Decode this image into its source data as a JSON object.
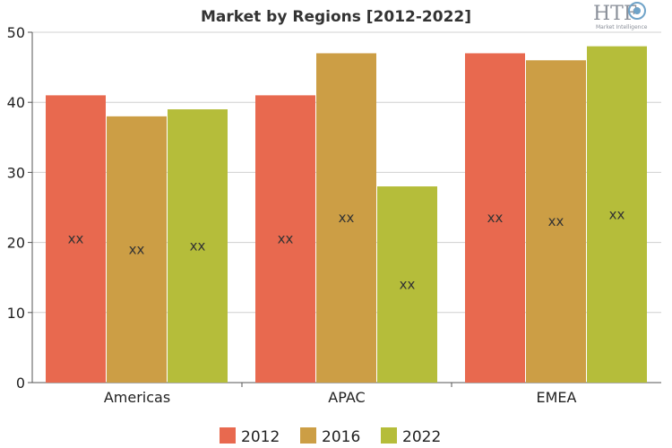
{
  "chart_data": {
    "type": "bar",
    "title": "Market by Regions [2012-2022]",
    "categories": [
      "Americas",
      "APAC",
      "EMEA"
    ],
    "series": [
      {
        "name": "2012",
        "color": "#e8694f",
        "values": [
          41,
          41,
          47
        ],
        "labels": [
          "xx",
          "xx",
          "xx"
        ]
      },
      {
        "name": "2016",
        "color": "#cc9e45",
        "values": [
          38,
          47,
          46
        ],
        "labels": [
          "xx",
          "xx",
          "xx"
        ]
      },
      {
        "name": "2022",
        "color": "#b5bd3a",
        "values": [
          39,
          28,
          48
        ],
        "labels": [
          "xx",
          "xx",
          "xx"
        ]
      }
    ],
    "ylim": [
      0,
      50
    ],
    "yticks": [
      0,
      10,
      20,
      30,
      40,
      50
    ],
    "grid": true,
    "legend_position": "bottom",
    "xlabel": "",
    "ylabel": ""
  },
  "logo": {
    "text": "HTF",
    "subtext": "Market Intelligence",
    "icon": "gear-globe-icon"
  }
}
